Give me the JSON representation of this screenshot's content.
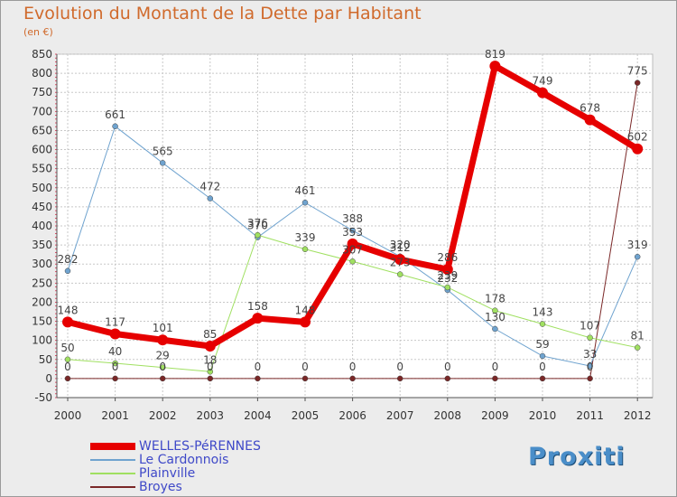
{
  "title": "Evolution du Montant de la Dette par Habitant",
  "subtitle": "(en €)",
  "logo": "Proxiti",
  "chart_data": {
    "type": "line",
    "x": [
      "2000",
      "2001",
      "2002",
      "2003",
      "2004",
      "2005",
      "2006",
      "2007",
      "2008",
      "2009",
      "2010",
      "2011",
      "2012"
    ],
    "ylim": [
      -50,
      850
    ],
    "yticks": [
      -50,
      0,
      50,
      100,
      150,
      200,
      250,
      300,
      350,
      400,
      450,
      500,
      550,
      600,
      650,
      700,
      750,
      800,
      850
    ],
    "grid": true,
    "series": [
      {
        "name": "WELLES-PéRENNES",
        "color": "#e60000",
        "width": 7,
        "marker": 6,
        "values": [
          148,
          117,
          101,
          85,
          158,
          148,
          353,
          312,
          286,
          819,
          749,
          678,
          602
        ],
        "labels": [
          "148",
          "117",
          "101",
          "85",
          "158",
          "148",
          "353",
          "312",
          "286",
          "819",
          "749",
          "678",
          "602"
        ]
      },
      {
        "name": "Le Cardonnois",
        "color": "#6fa3cf",
        "width": 1,
        "marker": 3,
        "values": [
          282,
          661,
          565,
          472,
          370,
          461,
          388,
          320,
          232,
          130,
          59,
          33,
          319
        ],
        "labels": [
          "282",
          "661",
          "565",
          "472",
          "370",
          "461",
          "388",
          "320",
          "232",
          "130",
          "59",
          "33",
          "319"
        ]
      },
      {
        "name": "Plainville",
        "color": "#a0e061",
        "width": 1,
        "marker": 3,
        "values": [
          50,
          40,
          29,
          18,
          376,
          339,
          307,
          273,
          239,
          178,
          143,
          107,
          81
        ],
        "labels": [
          "50",
          "40",
          "29",
          "18",
          "376",
          "339",
          "307",
          "273",
          "239",
          "178",
          "143",
          "107",
          "81"
        ]
      },
      {
        "name": "Broyes",
        "color": "#7a2727",
        "width": 1,
        "marker": 3,
        "values": [
          0,
          0,
          0,
          0,
          0,
          0,
          0,
          0,
          0,
          0,
          0,
          0,
          775
        ],
        "labels": [
          "0",
          "0",
          "0",
          "0",
          "0",
          "0",
          "0",
          "0",
          "0",
          "0",
          "0",
          "0",
          "775"
        ]
      }
    ]
  }
}
